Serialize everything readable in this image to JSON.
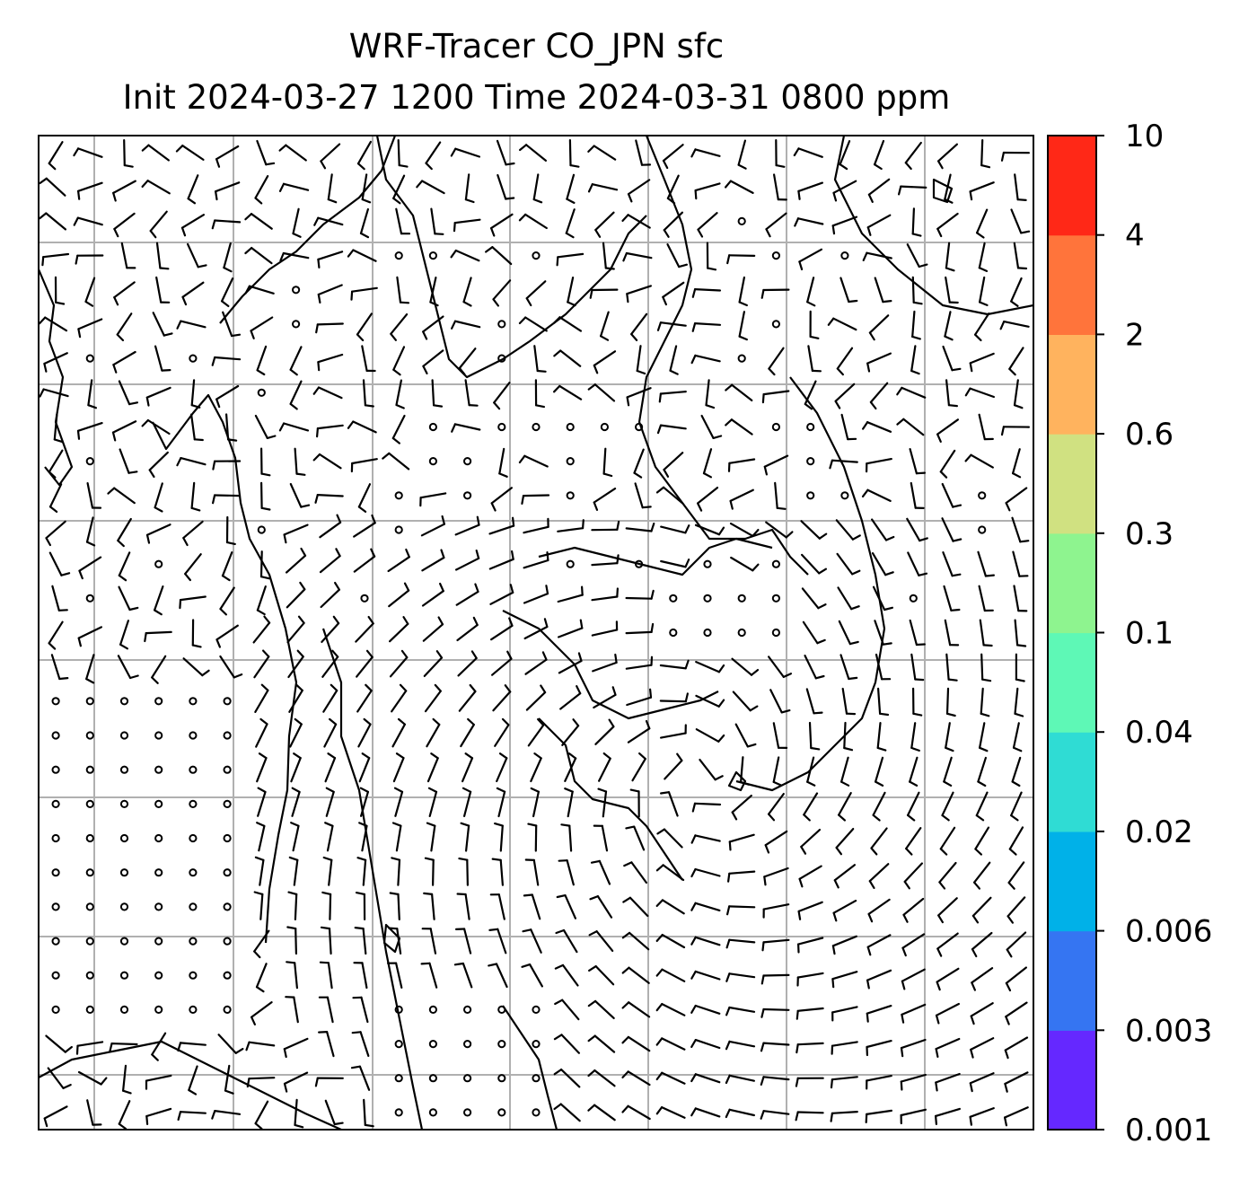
{
  "figure": {
    "title_line1": "WRF-Tracer CO_JPN sfc",
    "title_line2": "Init 2024-03-27 1200 Time 2024-03-31 0800 ppm"
  },
  "map": {
    "background": "#ffffff",
    "coast_color": "#000000",
    "grid_color": "#b0b0b0",
    "barb_color": "#000000",
    "barb_rows": 29,
    "barb_cols": 29,
    "calm_marker": "circle"
  },
  "colorbar": {
    "levels": [
      "0.001",
      "0.003",
      "0.006",
      "0.02",
      "0.04",
      "0.1",
      "0.3",
      "0.6",
      "2",
      "4",
      "10"
    ],
    "colors": [
      "#6528ff",
      "#3575f2",
      "#00b1e8",
      "#2fdcd4",
      "#5ef8b6",
      "#8ef48f",
      "#d0e181",
      "#ffb35e",
      "#ff743b",
      "#ff2817"
    ]
  }
}
